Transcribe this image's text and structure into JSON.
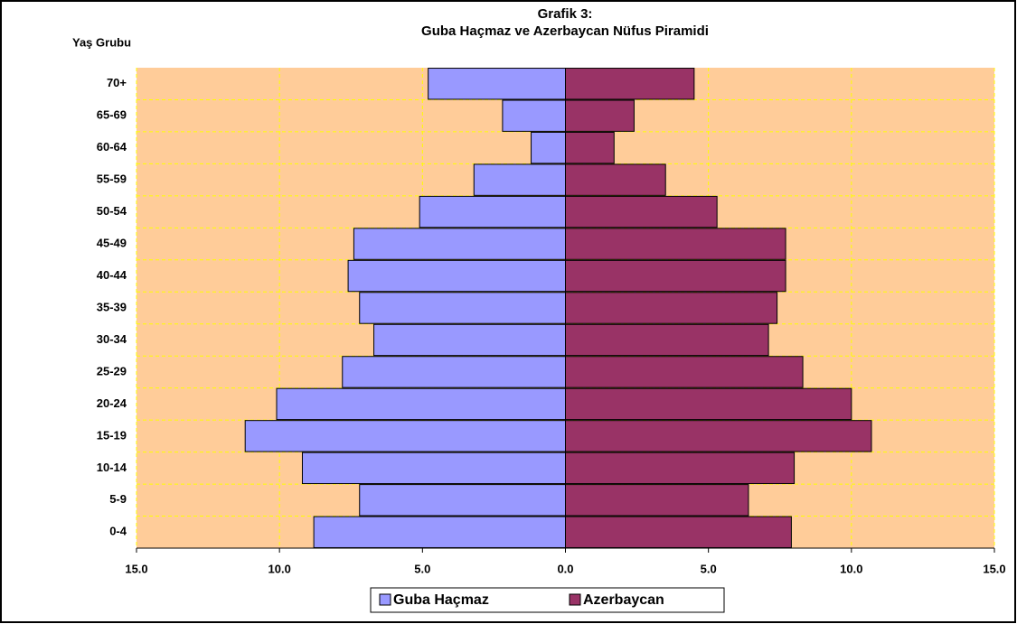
{
  "chart_data": {
    "type": "pyramid",
    "title": [
      "Grafik 3:",
      "Guba Haçmaz ve Azerbaycan Nüfus Piramidi"
    ],
    "y_axis_label": "Yaş Grubu",
    "categories": [
      "0-4",
      "5-9",
      "10-14",
      "15-19",
      "20-24",
      "25-29",
      "30-34",
      "35-39",
      "40-44",
      "45-49",
      "50-54",
      "55-59",
      "60-64",
      "65-69",
      "70+"
    ],
    "series": [
      {
        "name": "Guba Haçmaz",
        "color": "#9999ff",
        "values": [
          -8.8,
          -7.2,
          -9.2,
          -11.2,
          -10.1,
          -7.8,
          -6.7,
          -7.2,
          -7.6,
          -7.4,
          -5.1,
          -3.2,
          -1.2,
          -2.2,
          -4.8
        ]
      },
      {
        "name": "Azerbaycan",
        "color": "#993366",
        "values": [
          7.9,
          6.4,
          8.0,
          10.7,
          10.0,
          8.3,
          7.1,
          7.4,
          7.7,
          7.7,
          5.3,
          3.5,
          1.7,
          2.4,
          4.5
        ]
      }
    ],
    "xlim": [
      -15,
      15
    ],
    "xticks": [
      {
        "value": -15,
        "label": "15.0"
      },
      {
        "value": -10,
        "label": "10.0"
      },
      {
        "value": -5,
        "label": "5.0"
      },
      {
        "value": 0,
        "label": "0.0"
      },
      {
        "value": 5,
        "label": "5.0"
      },
      {
        "value": 10,
        "label": "10.0"
      },
      {
        "value": 15,
        "label": "15.0"
      }
    ],
    "grid": true,
    "legend": "bottom",
    "plot_background": "#ffcc99"
  }
}
